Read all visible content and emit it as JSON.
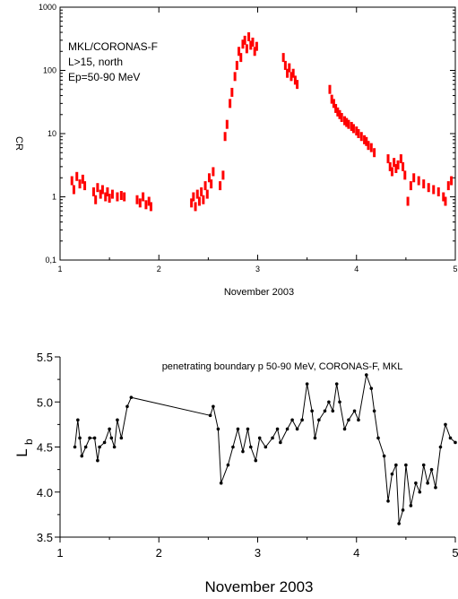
{
  "chart_data": [
    {
      "type": "scatter",
      "yscale": "log",
      "xlabel": "November 2003",
      "ylabel": "CR",
      "xlim": [
        1,
        5
      ],
      "ylim": [
        0.1,
        1000
      ],
      "xticks": [
        "1",
        "2",
        "3",
        "4",
        "5"
      ],
      "yticks": [
        "0,1",
        "1",
        "10",
        "100",
        "1000"
      ],
      "annotation": [
        "MKL/CORONAS-F",
        "L>15, north",
        "Ep=50-90 MeV"
      ],
      "series": [
        {
          "color": "#ff0000",
          "points": [
            [
              1.12,
              1.8
            ],
            [
              1.14,
              1.3
            ],
            [
              1.17,
              2.1
            ],
            [
              1.2,
              1.6
            ],
            [
              1.23,
              1.9
            ],
            [
              1.25,
              1.5
            ],
            [
              1.34,
              1.2
            ],
            [
              1.36,
              0.9
            ],
            [
              1.38,
              1.4
            ],
            [
              1.41,
              1.1
            ],
            [
              1.43,
              1.3
            ],
            [
              1.46,
              1.0
            ],
            [
              1.48,
              1.2
            ],
            [
              1.5,
              0.95
            ],
            [
              1.53,
              1.1
            ],
            [
              1.58,
              1.0
            ],
            [
              1.62,
              1.05
            ],
            [
              1.65,
              1.0
            ],
            [
              1.78,
              0.9
            ],
            [
              1.81,
              0.8
            ],
            [
              1.84,
              1.0
            ],
            [
              1.87,
              0.75
            ],
            [
              1.9,
              0.85
            ],
            [
              1.92,
              0.7
            ],
            [
              2.33,
              0.8
            ],
            [
              2.35,
              1.0
            ],
            [
              2.37,
              0.7
            ],
            [
              2.39,
              1.1
            ],
            [
              2.41,
              0.85
            ],
            [
              2.43,
              1.2
            ],
            [
              2.45,
              0.9
            ],
            [
              2.47,
              1.5
            ],
            [
              2.49,
              1.1
            ],
            [
              2.51,
              2.0
            ],
            [
              2.53,
              1.6
            ],
            [
              2.55,
              2.5
            ],
            [
              2.62,
              1.5
            ],
            [
              2.65,
              2.2
            ],
            [
              2.67,
              9.0
            ],
            [
              2.69,
              14.0
            ],
            [
              2.72,
              30.0
            ],
            [
              2.74,
              45.0
            ],
            [
              2.77,
              80.0
            ],
            [
              2.79,
              120.0
            ],
            [
              2.81,
              200.0
            ],
            [
              2.83,
              160.0
            ],
            [
              2.85,
              260.0
            ],
            [
              2.87,
              300.0
            ],
            [
              2.89,
              220.0
            ],
            [
              2.91,
              340.0
            ],
            [
              2.93,
              250.0
            ],
            [
              2.95,
              280.0
            ],
            [
              2.97,
              200.0
            ],
            [
              2.99,
              240.0
            ],
            [
              3.26,
              160.0
            ],
            [
              3.28,
              120.0
            ],
            [
              3.3,
              90.0
            ],
            [
              3.32,
              110.0
            ],
            [
              3.34,
              80.0
            ],
            [
              3.36,
              90.0
            ],
            [
              3.38,
              70.0
            ],
            [
              3.4,
              60.0
            ],
            [
              3.73,
              50.0
            ],
            [
              3.75,
              35.0
            ],
            [
              3.77,
              30.0
            ],
            [
              3.79,
              25.0
            ],
            [
              3.81,
              22.0
            ],
            [
              3.83,
              20.0
            ],
            [
              3.85,
              18.0
            ],
            [
              3.88,
              16.0
            ],
            [
              3.9,
              15.0
            ],
            [
              3.92,
              14.0
            ],
            [
              3.95,
              13.0
            ],
            [
              3.97,
              12.0
            ],
            [
              4.0,
              11.0
            ],
            [
              4.02,
              10.0
            ],
            [
              4.05,
              9.0
            ],
            [
              4.08,
              8.0
            ],
            [
              4.1,
              7.5
            ],
            [
              4.12,
              6.5
            ],
            [
              4.15,
              6.0
            ],
            [
              4.18,
              5.0
            ],
            [
              4.32,
              4.0
            ],
            [
              4.34,
              3.0
            ],
            [
              4.36,
              2.5
            ],
            [
              4.38,
              3.5
            ],
            [
              4.4,
              2.8
            ],
            [
              4.42,
              3.2
            ],
            [
              4.45,
              4.0
            ],
            [
              4.47,
              3.0
            ],
            [
              4.49,
              2.2
            ],
            [
              4.52,
              0.85
            ],
            [
              4.55,
              1.5
            ],
            [
              4.58,
              2.0
            ],
            [
              4.63,
              1.8
            ],
            [
              4.68,
              1.6
            ],
            [
              4.73,
              1.4
            ],
            [
              4.78,
              1.3
            ],
            [
              4.83,
              1.2
            ],
            [
              4.88,
              1.0
            ],
            [
              4.9,
              0.85
            ],
            [
              4.93,
              1.5
            ],
            [
              4.96,
              1.8
            ]
          ]
        }
      ]
    },
    {
      "type": "line",
      "xlabel": "November 2003",
      "ylabel": "L",
      "ylabel_sub": "b",
      "xlim": [
        1,
        5
      ],
      "ylim": [
        3.5,
        5.5
      ],
      "xticks": [
        "1",
        "2",
        "3",
        "4",
        "5"
      ],
      "yticks": [
        "3.5",
        "4.0",
        "4.5",
        "5.0",
        "5.5"
      ],
      "title": "penetrating boundary p 50-90 MeV, CORONAS-F, MKL",
      "series": [
        {
          "color": "#000000",
          "points": [
            [
              1.15,
              4.5
            ],
            [
              1.18,
              4.8
            ],
            [
              1.2,
              4.6
            ],
            [
              1.22,
              4.4
            ],
            [
              1.26,
              4.5
            ],
            [
              1.3,
              4.6
            ],
            [
              1.35,
              4.6
            ],
            [
              1.38,
              4.35
            ],
            [
              1.4,
              4.5
            ],
            [
              1.45,
              4.55
            ],
            [
              1.5,
              4.7
            ],
            [
              1.52,
              4.6
            ],
            [
              1.55,
              4.5
            ],
            [
              1.58,
              4.8
            ],
            [
              1.62,
              4.6
            ],
            [
              1.68,
              4.95
            ],
            [
              1.72,
              5.05
            ],
            [
              2.52,
              4.85
            ],
            [
              2.55,
              4.95
            ],
            [
              2.6,
              4.7
            ],
            [
              2.63,
              4.1
            ],
            [
              2.7,
              4.3
            ],
            [
              2.75,
              4.5
            ],
            [
              2.8,
              4.7
            ],
            [
              2.85,
              4.45
            ],
            [
              2.9,
              4.7
            ],
            [
              2.93,
              4.5
            ],
            [
              2.98,
              4.35
            ],
            [
              3.02,
              4.6
            ],
            [
              3.08,
              4.5
            ],
            [
              3.15,
              4.6
            ],
            [
              3.2,
              4.7
            ],
            [
              3.23,
              4.55
            ],
            [
              3.3,
              4.7
            ],
            [
              3.35,
              4.8
            ],
            [
              3.4,
              4.7
            ],
            [
              3.45,
              4.8
            ],
            [
              3.5,
              5.2
            ],
            [
              3.55,
              4.9
            ],
            [
              3.58,
              4.6
            ],
            [
              3.62,
              4.8
            ],
            [
              3.68,
              4.9
            ],
            [
              3.72,
              5.0
            ],
            [
              3.76,
              4.9
            ],
            [
              3.8,
              5.2
            ],
            [
              3.83,
              5.0
            ],
            [
              3.88,
              4.7
            ],
            [
              3.92,
              4.8
            ],
            [
              3.98,
              4.9
            ],
            [
              4.02,
              4.8
            ],
            [
              4.1,
              5.3
            ],
            [
              4.15,
              5.15
            ],
            [
              4.18,
              4.9
            ],
            [
              4.22,
              4.6
            ],
            [
              4.28,
              4.4
            ],
            [
              4.32,
              3.9
            ],
            [
              4.36,
              4.2
            ],
            [
              4.4,
              4.3
            ],
            [
              4.43,
              3.65
            ],
            [
              4.47,
              3.8
            ],
            [
              4.5,
              4.3
            ],
            [
              4.55,
              3.85
            ],
            [
              4.6,
              4.1
            ],
            [
              4.64,
              4.0
            ],
            [
              4.68,
              4.3
            ],
            [
              4.72,
              4.1
            ],
            [
              4.76,
              4.25
            ],
            [
              4.8,
              4.05
            ],
            [
              4.85,
              4.5
            ],
            [
              4.9,
              4.75
            ],
            [
              4.95,
              4.6
            ],
            [
              5.0,
              4.55
            ]
          ]
        }
      ]
    }
  ]
}
